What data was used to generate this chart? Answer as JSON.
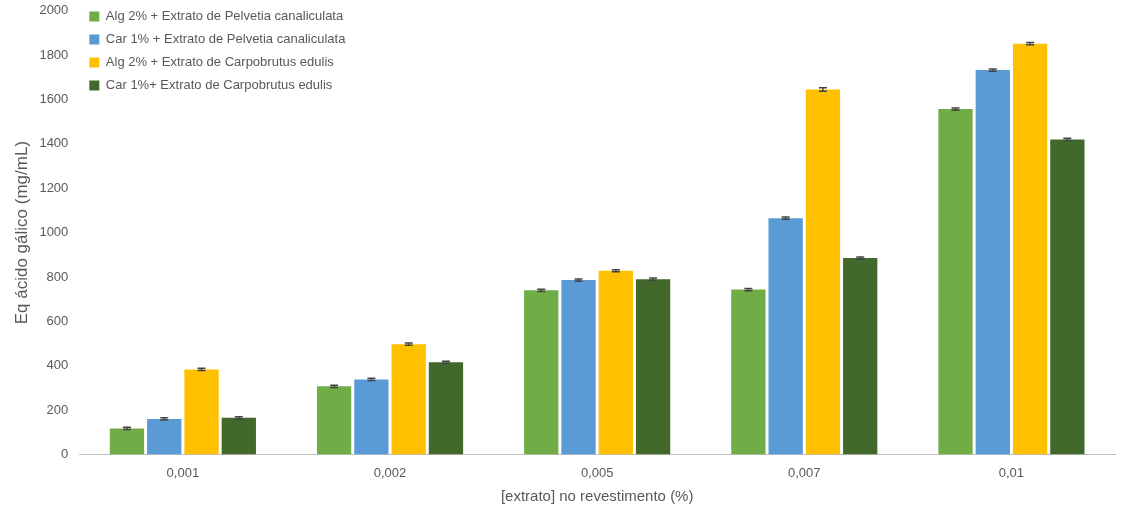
{
  "chart_data": {
    "type": "bar",
    "xlabel": "[extrato] no revestimento (%)",
    "ylabel": "Eq ácido gálico (mg/mL)",
    "categories": [
      "0,001",
      "0,002",
      "0,005",
      "0,007",
      "0,01"
    ],
    "series": [
      {
        "name": "Alg 2% + Extrato de Pelvetia canaliculata",
        "color": "#70ad47",
        "values": [
          117,
          307,
          740,
          743,
          1557
        ],
        "errors": [
          5,
          5,
          5,
          5,
          5
        ]
      },
      {
        "name": "Car 1% + Extrato de Pelvetia canaliculata",
        "color": "#5b9bd5",
        "values": [
          160,
          338,
          786,
          1065,
          1733
        ],
        "errors": [
          5,
          5,
          5,
          5,
          5
        ]
      },
      {
        "name": "Alg 2% + Extrato de Carpobrutus edulis",
        "color": "#ffc000",
        "values": [
          383,
          497,
          828,
          1645,
          1852
        ],
        "errors": [
          5,
          5,
          5,
          8,
          5
        ]
      },
      {
        "name": "Car 1%+ Extrato de Carpobrutus edulis",
        "color": "#43682b",
        "values": [
          165,
          415,
          790,
          885,
          1420
        ],
        "errors": [
          5,
          5,
          5,
          5,
          5
        ]
      }
    ],
    "ylim": [
      0,
      2000
    ],
    "yticks": [
      0,
      200,
      400,
      600,
      800,
      1000,
      1200,
      1400,
      1600,
      1800,
      2000
    ],
    "grid": false,
    "legend": "top left"
  }
}
